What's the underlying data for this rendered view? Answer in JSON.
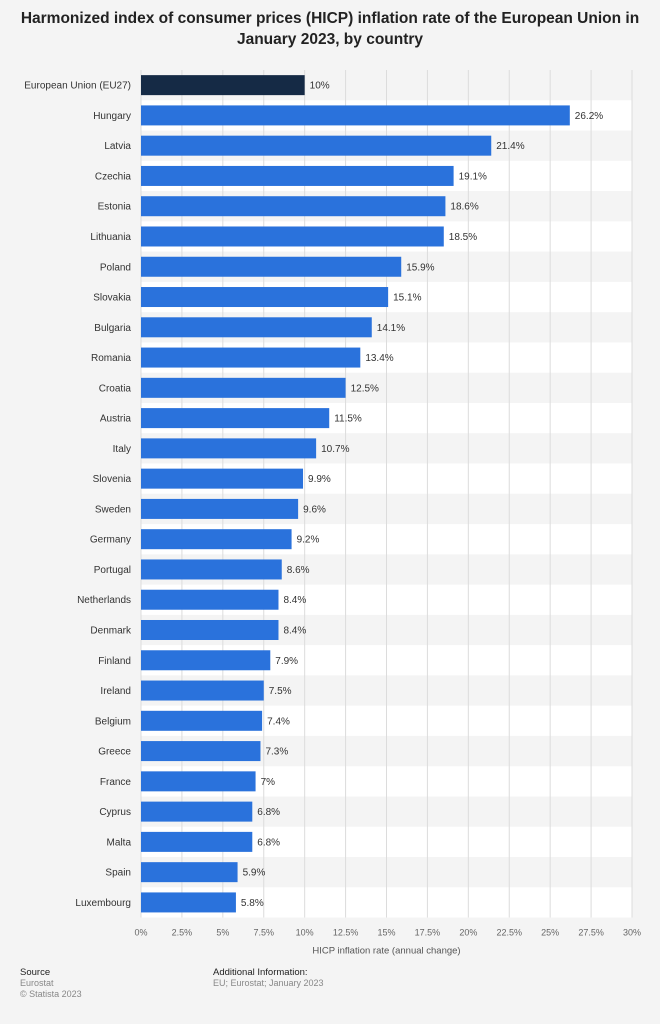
{
  "chart_data": {
    "type": "bar",
    "orientation": "horizontal",
    "title": "Harmonized index of consumer prices (HICP) inflation rate of the European Union in January 2023, by country",
    "categories": [
      "European Union (EU27)",
      "Hungary",
      "Latvia",
      "Czechia",
      "Estonia",
      "Lithuania",
      "Poland",
      "Slovakia",
      "Bulgaria",
      "Romania",
      "Croatia",
      "Austria",
      "Italy",
      "Slovenia",
      "Sweden",
      "Germany",
      "Portugal",
      "Netherlands",
      "Denmark",
      "Finland",
      "Ireland",
      "Belgium",
      "Greece",
      "France",
      "Cyprus",
      "Malta",
      "Spain",
      "Luxembourg"
    ],
    "values": [
      10,
      26.2,
      21.4,
      19.1,
      18.6,
      18.5,
      15.9,
      15.1,
      14.1,
      13.4,
      12.5,
      11.5,
      10.7,
      9.9,
      9.6,
      9.2,
      8.6,
      8.4,
      8.4,
      7.9,
      7.5,
      7.4,
      7.3,
      7,
      6.8,
      6.8,
      5.9,
      5.8
    ],
    "value_labels": [
      "10%",
      "26.2%",
      "21.4%",
      "19.1%",
      "18.6%",
      "18.5%",
      "15.9%",
      "15.1%",
      "14.1%",
      "13.4%",
      "12.5%",
      "11.5%",
      "10.7%",
      "9.9%",
      "9.6%",
      "9.2%",
      "8.6%",
      "8.4%",
      "8.4%",
      "7.9%",
      "7.5%",
      "7.4%",
      "7.3%",
      "7%",
      "6.8%",
      "6.8%",
      "5.9%",
      "5.8%"
    ],
    "xlabel": "HICP inflation rate (annual change)",
    "xlim": [
      0,
      30
    ],
    "x_ticks": [
      0,
      2.5,
      5,
      7.5,
      10,
      12.5,
      15,
      17.5,
      20,
      22.5,
      25,
      27.5,
      30
    ],
    "x_tick_labels": [
      "0%",
      "2.5%",
      "5%",
      "7.5%",
      "10%",
      "12.5%",
      "15%",
      "17.5%",
      "20%",
      "22.5%",
      "25%",
      "27.5%",
      "30%"
    ],
    "grid": true,
    "colors": {
      "highlight": "#152a45",
      "bar": "#2a72dc",
      "band": "#ffffff",
      "grid": "#dcdcdc"
    }
  },
  "footer": {
    "source_heading": "Source",
    "source_name": "Eurostat",
    "copyright": "© Statista 2023",
    "info_heading": "Additional Information:",
    "info_text": "EU; Eurostat; January 2023"
  }
}
